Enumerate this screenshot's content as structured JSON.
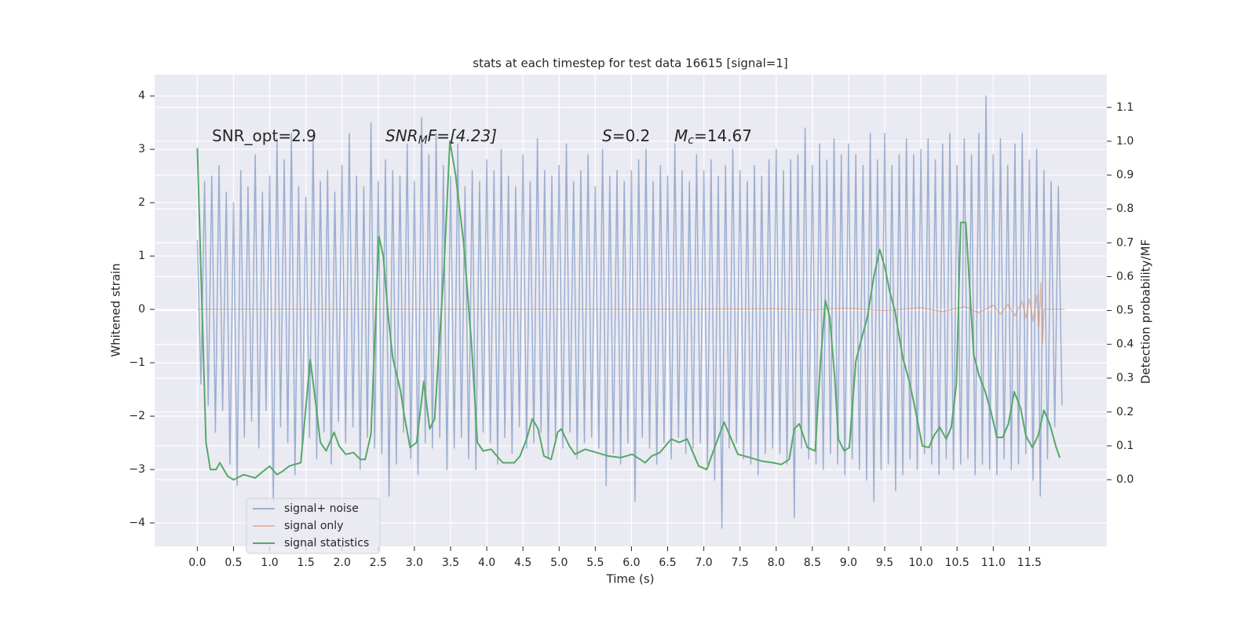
{
  "chart_data": {
    "type": "line",
    "title": "stats at each timestep for test data 16615 [signal=1]",
    "x_label": "Time (s)",
    "y_label": "Whitened strain",
    "y2_label": "Detection probability/MF",
    "annotations": [
      [
        "SNR_opt=2.9"
      ],
      [
        "SNR",
        "M",
        "F=[4.23]"
      ],
      [
        "S",
        "=0.2"
      ],
      [
        "M",
        "c",
        "=14.67"
      ]
    ],
    "grid": true,
    "xlim": [
      -0.59,
      12.57
    ],
    "ylim": [
      -4.44,
      4.4
    ],
    "y2lim": [
      -0.197,
      1.197
    ],
    "xticks": [
      {
        "value": 0,
        "label": "0.0"
      },
      0.5,
      {
        "value": 1,
        "label": "1.0"
      },
      1.5,
      {
        "value": 2,
        "label": "2.0"
      },
      2.5,
      {
        "value": 3,
        "label": "3.0"
      },
      3.5,
      {
        "value": 4,
        "label": "4.0"
      },
      4.5,
      {
        "value": 5,
        "label": "5.0"
      },
      5.5,
      {
        "value": 6,
        "label": "6.0"
      },
      6.5,
      {
        "value": 7,
        "label": "7.0"
      },
      7.5,
      {
        "value": 8,
        "label": "8.0"
      },
      8.5,
      {
        "value": 9,
        "label": "9.0"
      },
      9.5,
      {
        "value": 10,
        "label": "10.0"
      },
      10.5,
      {
        "value": 11,
        "label": "11.0"
      },
      11.5
    ],
    "yticks": [
      {
        "value": -4,
        "label": "−4"
      },
      {
        "value": -3,
        "label": "−3"
      },
      {
        "value": -2,
        "label": "−2"
      },
      {
        "value": -1,
        "label": "−1"
      },
      0,
      1,
      2,
      3,
      4
    ],
    "y2ticks": [
      {
        "value": 0,
        "label": "0.0"
      },
      0.1,
      0.2,
      0.3,
      0.4,
      0.5,
      0.6,
      0.7,
      0.8,
      0.9,
      {
        "value": 1,
        "label": "1.0"
      },
      1.1
    ],
    "series": [
      {
        "name": "signal+ noise",
        "color": "#4c72b0",
        "alpha": 0.5,
        "x": [
          0,
          0.05,
          0.1,
          0.15,
          0.2,
          0.25,
          0.3,
          0.35,
          0.4,
          0.45,
          0.5,
          0.55,
          0.6,
          0.65,
          0.7,
          0.75,
          0.8,
          0.85,
          0.9,
          0.95,
          1,
          1.05,
          1.1,
          1.15,
          1.2,
          1.25,
          1.3,
          1.35,
          1.4,
          1.45,
          1.5,
          1.55,
          1.6,
          1.65,
          1.7,
          1.75,
          1.8,
          1.85,
          1.9,
          1.95,
          2,
          2.05,
          2.1,
          2.15,
          2.2,
          2.25,
          2.3,
          2.35,
          2.4,
          2.45,
          2.5,
          2.55,
          2.6,
          2.65,
          2.7,
          2.75,
          2.8,
          2.85,
          2.9,
          2.95,
          3,
          3.05,
          3.1,
          3.15,
          3.2,
          3.25,
          3.3,
          3.35,
          3.4,
          3.45,
          3.5,
          3.55,
          3.6,
          3.65,
          3.7,
          3.75,
          3.8,
          3.85,
          3.9,
          3.95,
          4,
          4.05,
          4.1,
          4.15,
          4.2,
          4.25,
          4.3,
          4.35,
          4.4,
          4.45,
          4.5,
          4.55,
          4.6,
          4.65,
          4.7,
          4.75,
          4.8,
          4.85,
          4.9,
          4.95,
          5,
          5.05,
          5.1,
          5.15,
          5.2,
          5.25,
          5.3,
          5.35,
          5.4,
          5.45,
          5.5,
          5.55,
          5.6,
          5.65,
          5.7,
          5.75,
          5.8,
          5.85,
          5.9,
          5.95,
          6,
          6.05,
          6.1,
          6.15,
          6.2,
          6.25,
          6.3,
          6.35,
          6.4,
          6.45,
          6.5,
          6.55,
          6.6,
          6.65,
          6.7,
          6.75,
          6.8,
          6.85,
          6.9,
          6.95,
          7,
          7.05,
          7.1,
          7.15,
          7.2,
          7.25,
          7.3,
          7.35,
          7.4,
          7.45,
          7.5,
          7.55,
          7.6,
          7.65,
          7.7,
          7.75,
          7.8,
          7.85,
          7.9,
          7.95,
          8,
          8.05,
          8.1,
          8.15,
          8.2,
          8.25,
          8.3,
          8.35,
          8.4,
          8.45,
          8.5,
          8.55,
          8.6,
          8.65,
          8.7,
          8.75,
          8.8,
          8.85,
          8.9,
          8.95,
          9,
          9.05,
          9.1,
          9.15,
          9.2,
          9.25,
          9.3,
          9.35,
          9.4,
          9.45,
          9.5,
          9.55,
          9.6,
          9.65,
          9.7,
          9.75,
          9.8,
          9.85,
          9.9,
          9.95,
          10,
          10.05,
          10.1,
          10.15,
          10.2,
          10.25,
          10.3,
          10.35,
          10.4,
          10.45,
          10.5,
          10.55,
          10.6,
          10.65,
          10.7,
          10.75,
          10.8,
          10.85,
          10.9,
          10.95,
          11,
          11.05,
          11.1,
          11.15,
          11.2,
          11.25,
          11.3,
          11.35,
          11.4,
          11.45,
          11.5,
          11.55,
          11.6,
          11.65,
          11.7,
          11.75,
          11.8,
          11.85,
          11.9,
          11.95
        ],
        "values": [
          1.3,
          -1.4,
          2.4,
          -1.8,
          2.5,
          -2.3,
          2.7,
          -1.9,
          2.2,
          -2.9,
          2.0,
          -3.3,
          2.6,
          -2.4,
          2.3,
          -2.1,
          2.9,
          -2.6,
          2.2,
          -1.9,
          2.5,
          -3.6,
          3.2,
          -2.2,
          2.8,
          -2.5,
          3.3,
          -3.1,
          2.3,
          -2.6,
          2.1,
          -2.4,
          3.2,
          -2.8,
          2.4,
          -2.3,
          2.6,
          -2.9,
          2.2,
          -2.1,
          2.7,
          -2.5,
          3.3,
          -2.2,
          2.5,
          -3.0,
          2.3,
          -2.4,
          3.5,
          -2.6,
          2.4,
          -2.7,
          2.8,
          -3.5,
          2.6,
          -2.9,
          2.5,
          -2.3,
          3.1,
          -2.8,
          2.4,
          -3.1,
          3.6,
          -2.5,
          2.9,
          -2.6,
          3.3,
          -2.4,
          2.7,
          -3.0,
          2.5,
          -2.6,
          3.1,
          -2.4,
          2.3,
          -2.8,
          2.6,
          -3.0,
          2.4,
          -2.3,
          2.8,
          -2.5,
          2.6,
          -2.9,
          3.0,
          -2.4,
          2.5,
          -2.7,
          2.3,
          -2.2,
          2.9,
          -2.6,
          2.4,
          -2.5,
          3.2,
          -2.3,
          2.6,
          -2.8,
          2.5,
          -2.4,
          2.7,
          -2.6,
          3.1,
          -2.3,
          2.4,
          -2.8,
          2.6,
          -2.5,
          2.9,
          -2.4,
          2.3,
          -2.6,
          3.0,
          -3.3,
          2.5,
          -2.7,
          2.6,
          -2.9,
          2.4,
          -2.5,
          2.6,
          -3.6,
          2.8,
          -2.4,
          3.0,
          -2.6,
          2.4,
          -2.9,
          2.7,
          -2.5,
          2.5,
          -2.8,
          3.1,
          -2.4,
          2.6,
          -2.7,
          2.4,
          -2.6,
          2.9,
          -2.5,
          2.6,
          -2.9,
          2.8,
          -3.2,
          2.5,
          -4.1,
          2.7,
          -2.6,
          3.0,
          -2.5,
          2.6,
          -2.8,
          2.4,
          -2.9,
          2.7,
          -3.1,
          2.5,
          -2.7,
          2.8,
          -2.6,
          3.0,
          -2.7,
          2.6,
          -2.9,
          2.8,
          -3.9,
          2.9,
          -2.6,
          3.4,
          -2.8,
          2.7,
          -2.9,
          3.1,
          -3.0,
          2.8,
          -2.7,
          3.2,
          -2.9,
          2.9,
          -3.1,
          3.1,
          -2.8,
          2.9,
          -3.0,
          2.7,
          -3.2,
          3.3,
          -3.6,
          2.8,
          -3.0,
          3.3,
          -2.9,
          2.7,
          -3.4,
          2.9,
          -3.1,
          3.2,
          -2.8,
          2.9,
          -3.0,
          3.0,
          -2.7,
          3.2,
          -2.9,
          2.8,
          -3.1,
          3.1,
          -2.8,
          3.3,
          -3.0,
          2.7,
          -2.9,
          3.2,
          -2.8,
          2.9,
          -3.1,
          3.3,
          -2.9,
          4.0,
          -3.0,
          2.9,
          -3.1,
          3.2,
          -2.8,
          2.7,
          -3.0,
          3.1,
          -2.9,
          3.3,
          -2.7,
          2.8,
          -3.2,
          3.0,
          -3.5,
          2.6,
          -2.8,
          2.4,
          -2.2,
          2.3,
          -1.8
        ]
      },
      {
        "name": "signal only",
        "color": "#dd8452",
        "alpha": 0.5,
        "x": [
          0,
          6.0,
          8.0,
          8.5,
          9.0,
          9.5,
          10.0,
          10.3,
          10.6,
          10.8,
          11.0,
          11.1,
          11.2,
          11.3,
          11.4,
          11.45,
          11.5,
          11.55,
          11.6,
          11.63,
          11.66,
          11.68,
          11.7,
          11.99
        ],
        "values": [
          0,
          0,
          0.01,
          -0.01,
          0.02,
          -0.02,
          0.03,
          -0.04,
          0.05,
          -0.06,
          0.08,
          -0.09,
          0.1,
          -0.12,
          0.15,
          -0.17,
          0.2,
          -0.23,
          0.27,
          -0.33,
          0.5,
          -0.65,
          0,
          0
        ]
      },
      {
        "name": "signal statistics",
        "color": "#55a868",
        "alpha": 1,
        "axis": "y2",
        "x": [
          0,
          0.12,
          0.18,
          0.26,
          0.31,
          0.42,
          0.5,
          0.64,
          0.8,
          0.91,
          1.0,
          1.1,
          1.18,
          1.27,
          1.34,
          1.43,
          1.56,
          1.64,
          1.7,
          1.78,
          1.89,
          1.96,
          2.05,
          2.16,
          2.25,
          2.32,
          2.4,
          2.51,
          2.57,
          2.64,
          2.7,
          2.81,
          2.86,
          2.94,
          3.03,
          3.13,
          3.21,
          3.28,
          3.41,
          3.49,
          3.57,
          3.68,
          3.79,
          3.87,
          3.95,
          4.06,
          4.14,
          4.22,
          4.38,
          4.46,
          4.55,
          4.63,
          4.71,
          4.79,
          4.89,
          4.98,
          5.03,
          5.14,
          5.22,
          5.36,
          5.52,
          5.68,
          5.85,
          6.01,
          6.12,
          6.19,
          6.28,
          6.39,
          6.55,
          6.66,
          6.77,
          6.93,
          7.04,
          7.15,
          7.28,
          7.36,
          7.47,
          7.64,
          7.8,
          7.96,
          8.07,
          8.18,
          8.25,
          8.32,
          8.43,
          8.54,
          8.61,
          8.68,
          8.74,
          8.81,
          8.86,
          8.94,
          9.01,
          9.1,
          9.19,
          9.26,
          9.35,
          9.43,
          9.5,
          9.57,
          9.64,
          9.75,
          9.84,
          9.91,
          10.02,
          10.11,
          10.18,
          10.26,
          10.35,
          10.42,
          10.49,
          10.55,
          10.62,
          10.73,
          10.8,
          10.89,
          10.97,
          11.05,
          11.13,
          11.21,
          11.29,
          11.38,
          11.45,
          11.54,
          11.62,
          11.7,
          11.78,
          11.87,
          11.92
        ],
        "values": [
          0.98,
          0.11,
          0.03,
          0.03,
          0.05,
          0.01,
          0.0,
          0.015,
          0.005,
          0.025,
          0.04,
          0.015,
          0.025,
          0.04,
          0.045,
          0.05,
          0.355,
          0.22,
          0.11,
          0.085,
          0.14,
          0.1,
          0.075,
          0.08,
          0.06,
          0.06,
          0.135,
          0.72,
          0.66,
          0.48,
          0.36,
          0.26,
          0.19,
          0.095,
          0.11,
          0.29,
          0.15,
          0.18,
          0.63,
          1.0,
          0.9,
          0.7,
          0.4,
          0.11,
          0.085,
          0.09,
          0.07,
          0.05,
          0.05,
          0.07,
          0.12,
          0.18,
          0.15,
          0.07,
          0.06,
          0.14,
          0.15,
          0.1,
          0.075,
          0.09,
          0.08,
          0.07,
          0.065,
          0.075,
          0.06,
          0.05,
          0.07,
          0.08,
          0.12,
          0.11,
          0.12,
          0.04,
          0.03,
          0.095,
          0.17,
          0.13,
          0.075,
          0.065,
          0.055,
          0.05,
          0.045,
          0.06,
          0.15,
          0.165,
          0.095,
          0.085,
          0.34,
          0.53,
          0.48,
          0.3,
          0.12,
          0.085,
          0.095,
          0.35,
          0.425,
          0.48,
          0.6,
          0.68,
          0.63,
          0.555,
          0.5,
          0.36,
          0.29,
          0.22,
          0.1,
          0.095,
          0.13,
          0.155,
          0.12,
          0.155,
          0.28,
          0.76,
          0.76,
          0.37,
          0.31,
          0.26,
          0.2,
          0.125,
          0.125,
          0.165,
          0.26,
          0.21,
          0.13,
          0.095,
          0.13,
          0.205,
          0.165,
          0.095,
          0.065
        ]
      }
    ]
  }
}
